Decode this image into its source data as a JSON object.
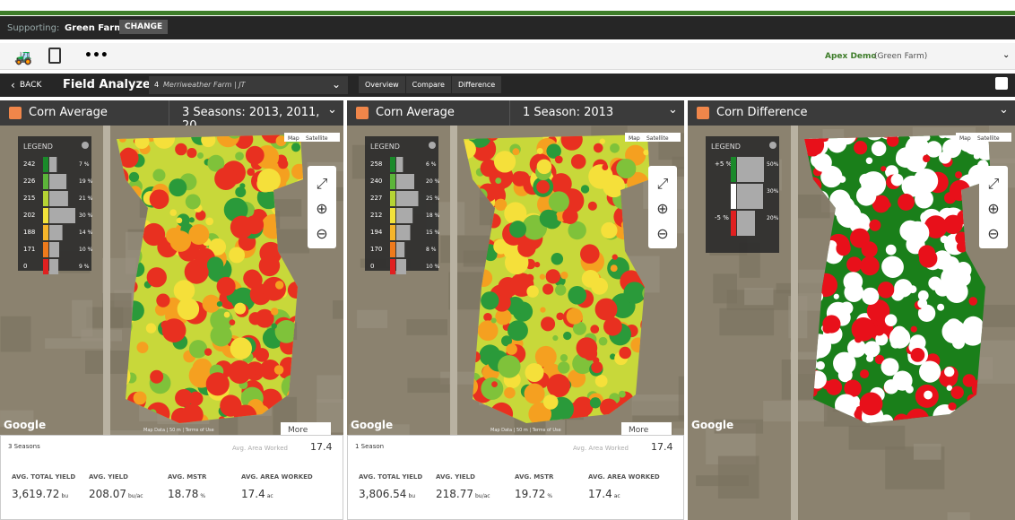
{
  "top_bar": {
    "supporting_label": "Supporting:",
    "farm": "Green Farm",
    "change_button": "CHANGE"
  },
  "toolbar": {
    "more": "•••",
    "account": "Apex Demo",
    "account_org": "(Green Farm)"
  },
  "nav": {
    "back": "BACK",
    "title": "Field Analyzer",
    "field_number": "4",
    "field": "Merriweather Farm | JT",
    "tabs": [
      "Overview",
      "Compare",
      "Difference"
    ]
  },
  "panels": [
    {
      "title": "Corn Average",
      "seasons": "3 Seasons: 2013, 2011, 20...",
      "legend": {
        "title": "LEGEND",
        "rows": [
          {
            "value": "242",
            "percent": "7 %"
          },
          {
            "value": "226",
            "percent": "19 %"
          },
          {
            "value": "215",
            "percent": "21 %"
          },
          {
            "value": "202",
            "percent": "30 %"
          },
          {
            "value": "188",
            "percent": "14 %"
          },
          {
            "value": "171",
            "percent": "10 %"
          },
          {
            "value": "0",
            "percent": "9 %"
          }
        ]
      },
      "map_buttons": [
        "Map",
        "Satellite"
      ],
      "more": "More",
      "google": "Google",
      "attribution": "Map Data | 50 m | Terms of Use",
      "stats": {
        "summary": "3 Seasons",
        "area_label": "Avg. Area Worked",
        "area_value": "17.4",
        "metrics": [
          {
            "label": "AVG. TOTAL YIELD",
            "value": "3,619.72",
            "unit": "bu"
          },
          {
            "label": "AVG. YIELD",
            "value": "208.07",
            "unit": "bu/ac"
          },
          {
            "label": "AVG. MSTR",
            "value": "18.78",
            "unit": "%"
          },
          {
            "label": "AVG. AREA WORKED",
            "value": "17.4",
            "unit": "ac"
          }
        ]
      }
    },
    {
      "title": "Corn Average",
      "seasons": "1 Season: 2013",
      "legend": {
        "title": "LEGEND",
        "rows": [
          {
            "value": "258",
            "percent": "6 %"
          },
          {
            "value": "240",
            "percent": "20 %"
          },
          {
            "value": "227",
            "percent": "25 %"
          },
          {
            "value": "212",
            "percent": "18 %"
          },
          {
            "value": "194",
            "percent": "15 %"
          },
          {
            "value": "170",
            "percent": "8 %"
          },
          {
            "value": "0",
            "percent": "10 %"
          }
        ]
      },
      "map_buttons": [
        "Map",
        "Satellite"
      ],
      "more": "More",
      "google": "Google",
      "attribution": "Map Data | 50 m | Terms of Use",
      "stats": {
        "summary": "1 Season",
        "area_label": "Avg. Area Worked",
        "area_value": "17.4",
        "metrics": [
          {
            "label": "AVG. TOTAL YIELD",
            "value": "3,806.54",
            "unit": "bu"
          },
          {
            "label": "AVG. YIELD",
            "value": "218.77",
            "unit": "bu/ac"
          },
          {
            "label": "AVG. MSTR",
            "value": "19.72",
            "unit": "%"
          },
          {
            "label": "AVG. AREA WORKED",
            "value": "17.4",
            "unit": "ac"
          }
        ]
      }
    },
    {
      "title": "Corn Difference",
      "legend": {
        "title": "LEGEND",
        "rows": [
          {
            "value": "+5 %",
            "percent": "50%"
          },
          {
            "percent": "30%"
          },
          {
            "value": "-5 %",
            "percent": "20%"
          }
        ]
      },
      "map_buttons": [
        "Map",
        "Satellite"
      ],
      "google": "Google"
    }
  ]
}
